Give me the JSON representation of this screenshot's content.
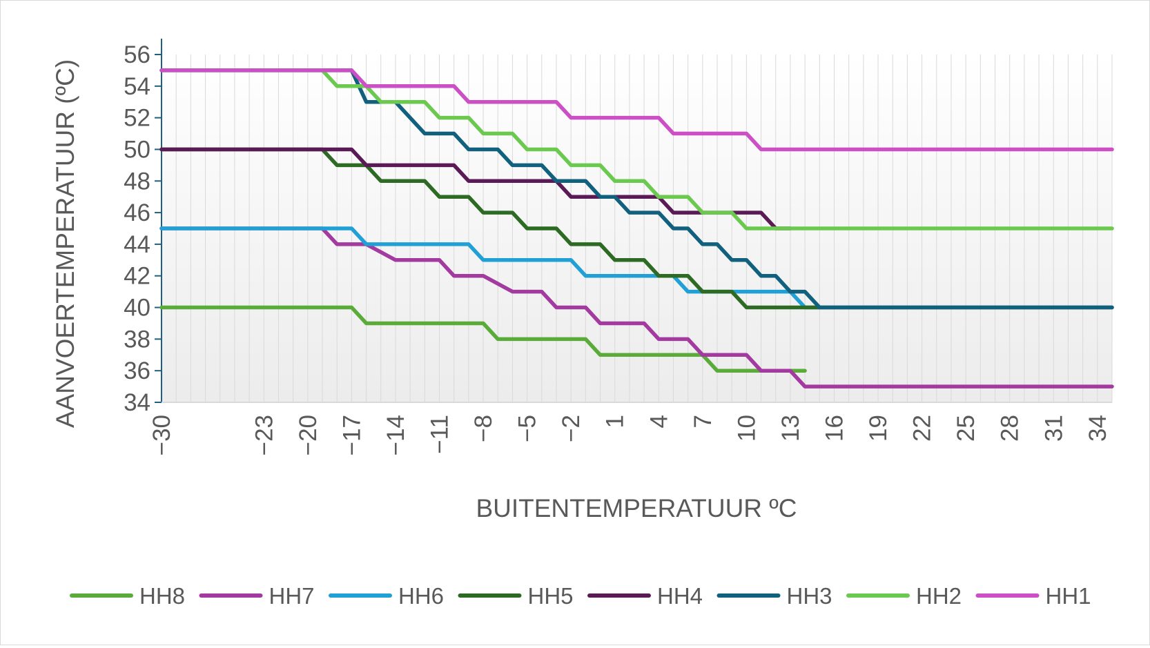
{
  "chart_data": {
    "type": "line",
    "title": "",
    "xlabel": "BUITENTEMPERATUUR ºC",
    "ylabel": "AANVOERTEMPERATUUR (ºC)",
    "ylim": [
      34,
      56
    ],
    "yticks": [
      34,
      36,
      38,
      40,
      42,
      44,
      46,
      48,
      50,
      52,
      54,
      56
    ],
    "xlim": [
      -30,
      35
    ],
    "xtick_labels": [
      "-30",
      "-23",
      "-20",
      "-17",
      "-14",
      "-11",
      "-8",
      "-5",
      "-2",
      "1",
      "4",
      "7",
      "10",
      "13",
      "16",
      "19",
      "22",
      "25",
      "28",
      "31",
      "34"
    ],
    "grid": "vertical",
    "legend_position": "bottom",
    "series": [
      {
        "name": "HH8",
        "color": "#5aab3a",
        "points": [
          [
            -30,
            40
          ],
          [
            -17,
            40
          ],
          [
            -16,
            39
          ],
          [
            -8,
            39
          ],
          [
            -7,
            38
          ],
          [
            -1,
            38
          ],
          [
            0,
            37
          ],
          [
            7,
            37
          ],
          [
            8,
            36
          ],
          [
            14,
            36
          ]
        ]
      },
      {
        "name": "HH7",
        "color": "#a33a9f",
        "points": [
          [
            -30,
            45
          ],
          [
            -19,
            45
          ],
          [
            -18,
            44
          ],
          [
            -16,
            44
          ],
          [
            -14,
            43
          ],
          [
            -11,
            43
          ],
          [
            -10,
            42
          ],
          [
            -8,
            42
          ],
          [
            -6,
            41
          ],
          [
            -4,
            41
          ],
          [
            -3,
            40
          ],
          [
            -1,
            40
          ],
          [
            0,
            39
          ],
          [
            3,
            39
          ],
          [
            4,
            38
          ],
          [
            6,
            38
          ],
          [
            7,
            37
          ],
          [
            10,
            37
          ],
          [
            11,
            36
          ],
          [
            13,
            36
          ],
          [
            14,
            35
          ],
          [
            35,
            35
          ]
        ]
      },
      {
        "name": "HH6",
        "color": "#21a0d6",
        "points": [
          [
            -30,
            45
          ],
          [
            -17,
            45
          ],
          [
            -16,
            44
          ],
          [
            -9,
            44
          ],
          [
            -8,
            43
          ],
          [
            -2,
            43
          ],
          [
            -1,
            42
          ],
          [
            5,
            42
          ],
          [
            6,
            41
          ],
          [
            13,
            41
          ],
          [
            14,
            40
          ],
          [
            15,
            40
          ]
        ]
      },
      {
        "name": "HH5",
        "color": "#2d6a24",
        "points": [
          [
            -30,
            50
          ],
          [
            -19,
            50
          ],
          [
            -18,
            49
          ],
          [
            -16,
            49
          ],
          [
            -15,
            48
          ],
          [
            -12,
            48
          ],
          [
            -11,
            47
          ],
          [
            -9,
            47
          ],
          [
            -8,
            46
          ],
          [
            -6,
            46
          ],
          [
            -5,
            45
          ],
          [
            -3,
            45
          ],
          [
            -2,
            44
          ],
          [
            0,
            44
          ],
          [
            1,
            43
          ],
          [
            3,
            43
          ],
          [
            4,
            42
          ],
          [
            6,
            42
          ],
          [
            7,
            41
          ],
          [
            9,
            41
          ],
          [
            10,
            40
          ],
          [
            35,
            40
          ]
        ]
      },
      {
        "name": "HH4",
        "color": "#5a1a56",
        "points": [
          [
            -30,
            50
          ],
          [
            -17,
            50
          ],
          [
            -16,
            49
          ],
          [
            -10,
            49
          ],
          [
            -9,
            48
          ],
          [
            -3,
            48
          ],
          [
            -2,
            47
          ],
          [
            4,
            47
          ],
          [
            5,
            46
          ],
          [
            11,
            46
          ],
          [
            12,
            45
          ],
          [
            13,
            45
          ]
        ]
      },
      {
        "name": "HH3",
        "color": "#11607e",
        "points": [
          [
            -30,
            55
          ],
          [
            -17,
            55
          ],
          [
            -16,
            53
          ],
          [
            -14,
            53
          ],
          [
            -12,
            51
          ],
          [
            -10,
            51
          ],
          [
            -9,
            50
          ],
          [
            -7,
            50
          ],
          [
            -6,
            49
          ],
          [
            -4,
            49
          ],
          [
            -3,
            48
          ],
          [
            -1,
            48
          ],
          [
            0,
            47
          ],
          [
            1,
            47
          ],
          [
            2,
            46
          ],
          [
            4,
            46
          ],
          [
            5,
            45
          ],
          [
            6,
            45
          ],
          [
            7,
            44
          ],
          [
            8,
            44
          ],
          [
            9,
            43
          ],
          [
            10,
            43
          ],
          [
            11,
            42
          ],
          [
            12,
            42
          ],
          [
            13,
            41
          ],
          [
            14,
            41
          ],
          [
            15,
            40
          ],
          [
            35,
            40
          ]
        ]
      },
      {
        "name": "HH2",
        "color": "#6cc94f",
        "points": [
          [
            -30,
            55
          ],
          [
            -19,
            55
          ],
          [
            -18,
            54
          ],
          [
            -16,
            54
          ],
          [
            -15,
            53
          ],
          [
            -12,
            53
          ],
          [
            -11,
            52
          ],
          [
            -9,
            52
          ],
          [
            -8,
            51
          ],
          [
            -6,
            51
          ],
          [
            -5,
            50
          ],
          [
            -3,
            50
          ],
          [
            -2,
            49
          ],
          [
            0,
            49
          ],
          [
            1,
            48
          ],
          [
            3,
            48
          ],
          [
            4,
            47
          ],
          [
            6,
            47
          ],
          [
            7,
            46
          ],
          [
            9,
            46
          ],
          [
            10,
            45
          ],
          [
            35,
            45
          ]
        ]
      },
      {
        "name": "HH1",
        "color": "#cc4fc6",
        "points": [
          [
            -30,
            55
          ],
          [
            -17,
            55
          ],
          [
            -16,
            54
          ],
          [
            -10,
            54
          ],
          [
            -9,
            53
          ],
          [
            -3,
            53
          ],
          [
            -2,
            52
          ],
          [
            4,
            52
          ],
          [
            5,
            51
          ],
          [
            10,
            51
          ],
          [
            11,
            50
          ],
          [
            35,
            50
          ]
        ]
      }
    ]
  }
}
